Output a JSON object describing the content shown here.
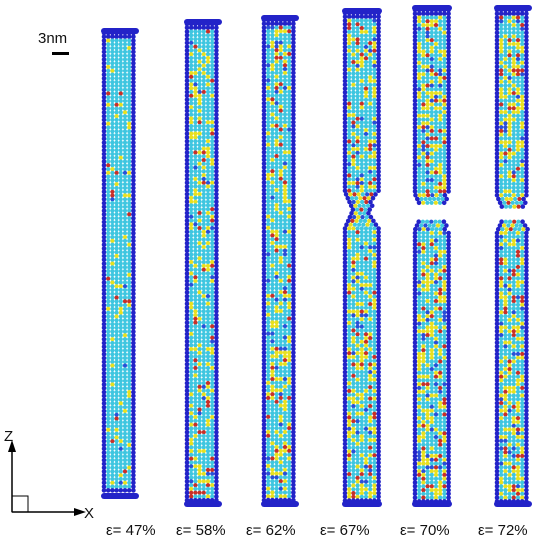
{
  "scale_bar": {
    "label": "3nm"
  },
  "axes": {
    "z_label": "Z",
    "x_label": "X"
  },
  "panels": [
    {
      "strain_label": "ε= 47%",
      "strain": 47,
      "fractured": false
    },
    {
      "strain_label": "ε= 58%",
      "strain": 58,
      "fractured": false
    },
    {
      "strain_label": "ε= 62%",
      "strain": 62,
      "fractured": false
    },
    {
      "strain_label": "ε= 67%",
      "strain": 67,
      "fractured": false
    },
    {
      "strain_label": "ε= 70%",
      "strain": 70,
      "fractured": true
    },
    {
      "strain_label": "ε= 72%",
      "strain": 72,
      "fractured": true
    }
  ],
  "colors": {
    "boundary_atoms": "#2323c8",
    "bulk_atoms": "#3fc6e0",
    "defect_yellow": "#e8e020",
    "defect_red": "#c83028",
    "defect_blue": "#2a50d8"
  }
}
